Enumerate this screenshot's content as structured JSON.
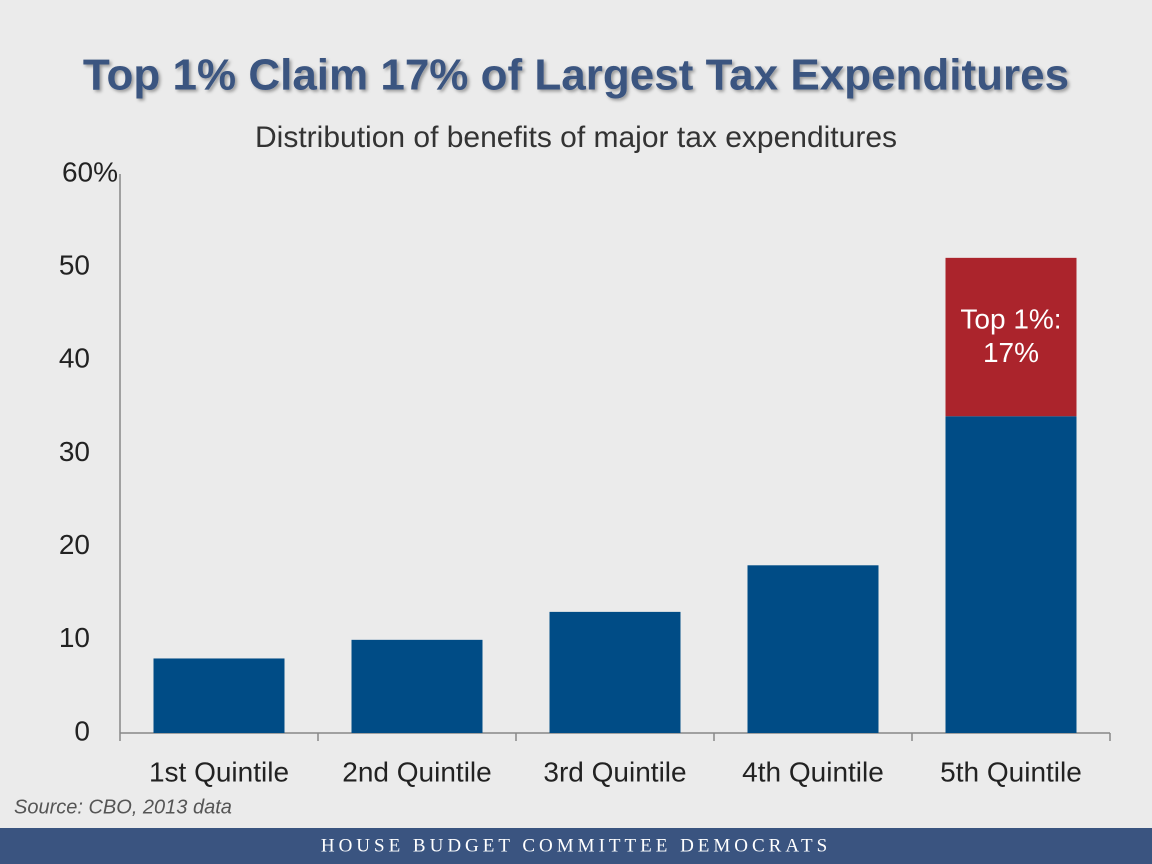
{
  "chart_data": {
    "type": "stacked_bar",
    "title": "Top 1% Claim 17% of Largest Tax Expenditures",
    "subtitle": "Distribution of benefits of major tax expenditures",
    "categories": [
      "1st Quintile",
      "2nd Quintile",
      "3rd Quintile",
      "4th Quintile",
      "5th Quintile"
    ],
    "series": [
      {
        "color": "#004c86",
        "values": [
          8,
          10,
          13,
          18,
          34
        ]
      },
      {
        "color": "#ab242c",
        "values": [
          0,
          0,
          0,
          0,
          17
        ],
        "value_labels": [
          null,
          null,
          null,
          null,
          "Top 1%: 17%"
        ]
      }
    ],
    "ylim": [
      0,
      60
    ],
    "yticks": [
      0,
      10,
      20,
      30,
      40,
      50,
      {
        "value": 60,
        "label": "60%"
      }
    ],
    "grid": false,
    "source": "Source: CBO, 2013 data"
  },
  "footer": "HOUSE BUDGET COMMITTEE DEMOCRATS"
}
